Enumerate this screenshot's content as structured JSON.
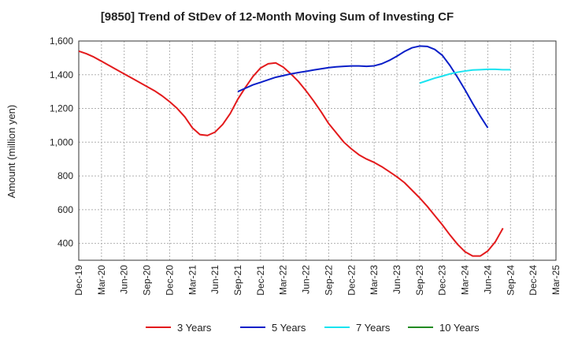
{
  "chart_data": {
    "type": "line",
    "title": "[9850]  Trend of StDev of 12-Month Moving Sum of Investing CF",
    "ylabel": "Amount (million yen)",
    "xlabel": "",
    "ylim": [
      300,
      1600
    ],
    "yticks": [
      400,
      600,
      800,
      1000,
      1200,
      1400,
      1600
    ],
    "ytick_labels": [
      "400",
      "600",
      "800",
      "1,000",
      "1,200",
      "1,400",
      "1,600"
    ],
    "xtick_labels": [
      "Dec-19",
      "Mar-20",
      "Jun-20",
      "Sep-20",
      "Dec-20",
      "Mar-21",
      "Jun-21",
      "Sep-21",
      "Dec-21",
      "Mar-22",
      "Jun-22",
      "Sep-22",
      "Dec-22",
      "Mar-23",
      "Jun-23",
      "Sep-23",
      "Dec-23",
      "Mar-24",
      "Jun-24",
      "Sep-24",
      "Dec-24",
      "Mar-25"
    ],
    "grid": true,
    "legend_position": "bottom",
    "series": [
      {
        "name": "3 Years",
        "color": "#e31a1c",
        "start_index": 0,
        "values": [
          1540,
          1525,
          1505,
          1480,
          1455,
          1430,
          1405,
          1380,
          1355,
          1330,
          1305,
          1275,
          1240,
          1200,
          1150,
          1085,
          1045,
          1040,
          1060,
          1105,
          1170,
          1255,
          1325,
          1390,
          1440,
          1465,
          1470,
          1445,
          1405,
          1360,
          1305,
          1245,
          1180,
          1110,
          1055,
          1000,
          960,
          925,
          900,
          880,
          855,
          825,
          795,
          760,
          715,
          670,
          620,
          565,
          510,
          450,
          395,
          350,
          325,
          325,
          355,
          410,
          490
        ]
      },
      {
        "name": "5 Years",
        "color": "#0a1fc8",
        "start_index": 21,
        "values": [
          1300,
          1320,
          1340,
          1355,
          1370,
          1385,
          1395,
          1405,
          1413,
          1420,
          1428,
          1435,
          1442,
          1447,
          1450,
          1452,
          1452,
          1450,
          1453,
          1465,
          1485,
          1510,
          1538,
          1560,
          1570,
          1568,
          1550,
          1515,
          1455,
          1385,
          1310,
          1230,
          1155,
          1085
        ]
      },
      {
        "name": "7 Years",
        "color": "#19e3f0",
        "start_index": 45,
        "values": [
          1350,
          1365,
          1380,
          1392,
          1405,
          1415,
          1422,
          1428,
          1430,
          1432,
          1432,
          1430,
          1430
        ]
      },
      {
        "name": "10 Years",
        "color": "#228b22",
        "start_index": 0,
        "values": []
      }
    ]
  }
}
